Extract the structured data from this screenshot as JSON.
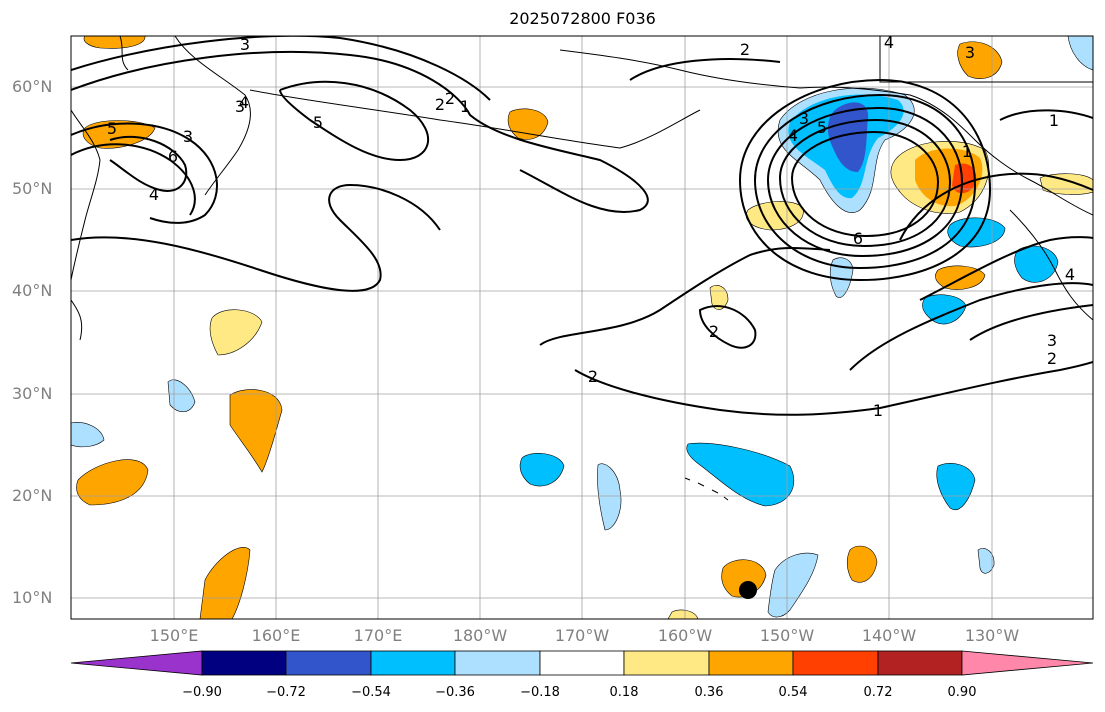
{
  "title": "2025072800 F036",
  "map": {
    "lat_labels": [
      "60°N",
      "50°N",
      "40°N",
      "30°N",
      "20°N",
      "10°N"
    ],
    "lon_labels": [
      "150°E",
      "160°E",
      "170°E",
      "180°W",
      "170°W",
      "160°W",
      "150°W",
      "140°W",
      "130°W"
    ],
    "contour_labels": [
      "3",
      "2",
      "1",
      "4",
      "5",
      "6",
      "3",
      "5",
      "4",
      "3",
      "2",
      "1",
      "2",
      "3",
      "4",
      "5",
      "6",
      "1",
      "4",
      "3",
      "2",
      "3",
      "2",
      "1",
      "2",
      "4"
    ],
    "colors": {
      "purple": "#9933cc",
      "navy": "#000080",
      "blue": "#3355cc",
      "deepsky": "#00bfff",
      "lightblue": "#addfff",
      "white": "#ffffff",
      "lightyellow": "#ffe985",
      "orange": "#ffa500",
      "redorange": "#ff4000",
      "darkred": "#b22222",
      "pink": "#ff88aa"
    }
  },
  "colorbar": {
    "ticks": [
      "−0.90",
      "−0.72",
      "−0.54",
      "−0.36",
      "−0.18",
      "0.18",
      "0.36",
      "0.54",
      "0.72",
      "0.90"
    ]
  },
  "marker": {
    "name": "storm-position-marker"
  }
}
